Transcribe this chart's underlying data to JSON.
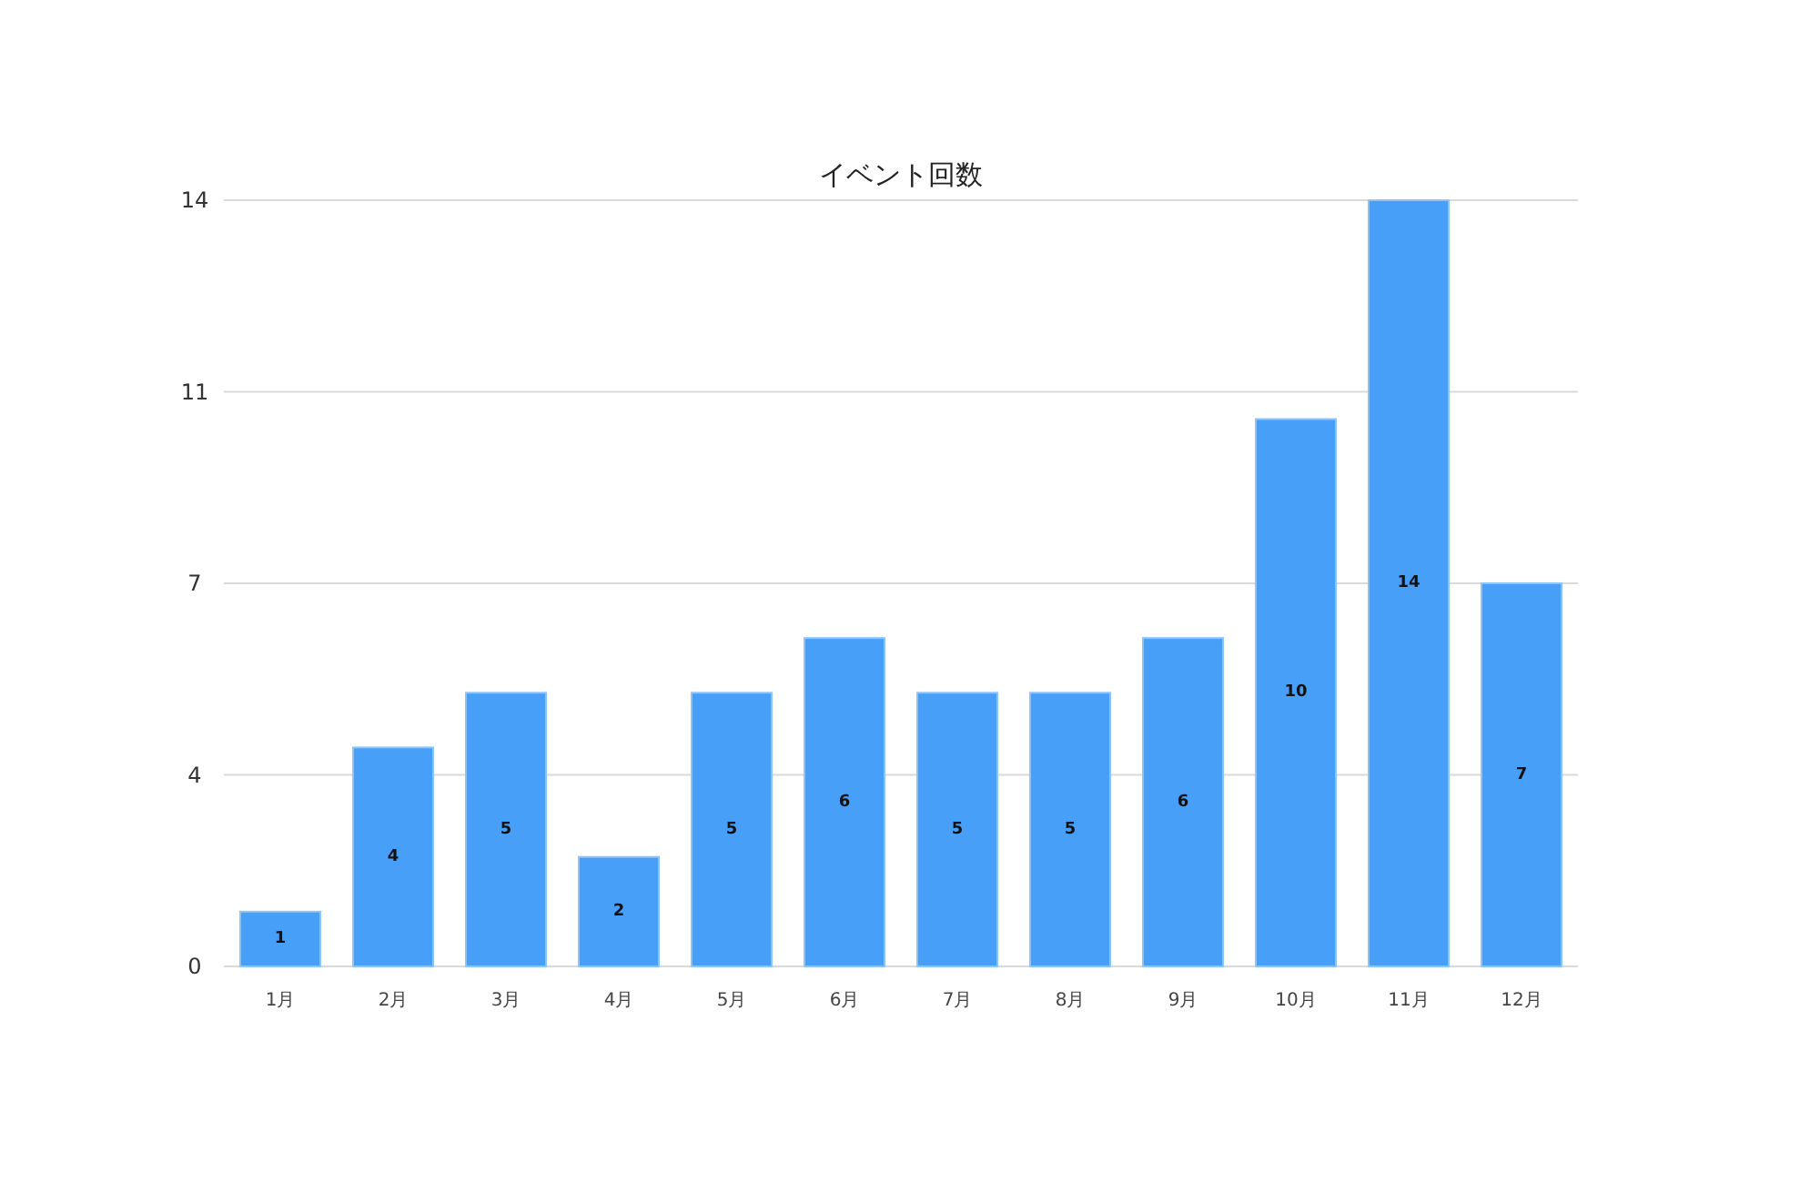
{
  "chart_data": {
    "type": "bar",
    "title": "イベント回数",
    "categories": [
      "1月",
      "2月",
      "3月",
      "4月",
      "5月",
      "6月",
      "7月",
      "8月",
      "9月",
      "10月",
      "11月",
      "12月"
    ],
    "values": [
      1,
      4,
      5,
      2,
      5,
      6,
      5,
      5,
      6,
      10,
      14,
      7
    ],
    "color": "#489ff8",
    "ylim": [
      0,
      14
    ],
    "yticks": [
      0,
      {
        "value": 3.5,
        "label": "4"
      },
      7,
      {
        "value": 10.5,
        "label": "11"
      },
      14
    ],
    "grid": "y",
    "data_labels": true
  }
}
